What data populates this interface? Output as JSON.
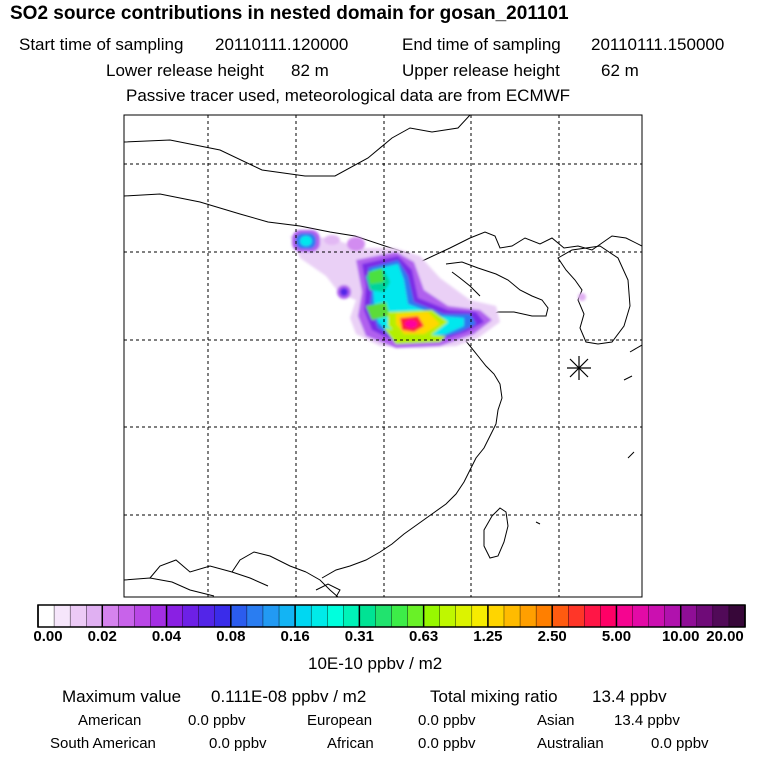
{
  "header": {
    "title": "SO2 source contributions in nested domain for gosan_201101",
    "start_label": "Start time of sampling",
    "start_value": "20110111.120000",
    "end_label": "End time of sampling",
    "end_value": "20110111.150000",
    "lower_label": "Lower release height",
    "lower_value": "82 m",
    "upper_label": "Upper release height",
    "upper_value": "62 m",
    "note": "Passive tracer used, meteorological data are from ECMWF"
  },
  "colorbar": {
    "unit": "10E-10 ppbv / m2",
    "tick_labels": [
      "0.00",
      "0.02",
      "0.04",
      "0.08",
      "0.16",
      "0.31",
      "0.63",
      "1.25",
      "2.50",
      "5.00",
      "10.00",
      "20.00"
    ],
    "colors": [
      "#ffffff",
      "#f6e6fb",
      "#eccaf6",
      "#e0b0f2",
      "#d583ee",
      "#c863ea",
      "#b947e6",
      "#a42ee3",
      "#8a20e3",
      "#6d20e6",
      "#5325e8",
      "#3a2cea",
      "#2b5cee",
      "#2a7df1",
      "#229af3",
      "#13b4f4",
      "#00d7f2",
      "#00ebe9",
      "#00ffdd",
      "#00f3b8",
      "#00e394",
      "#21e36e",
      "#3ded48",
      "#69f127",
      "#97f800",
      "#bff700",
      "#dcf300",
      "#f6ec00",
      "#ffd500",
      "#ffbb00",
      "#ff9f00",
      "#ff7f00",
      "#ff5b10",
      "#ff3628",
      "#ff1646",
      "#ff0066",
      "#f50590",
      "#e30aa6",
      "#cb10b0",
      "#b012ad",
      "#8f0e96",
      "#6f0b78",
      "#510a58",
      "#370739"
    ]
  },
  "stats": {
    "max_label": "Maximum value",
    "max_value": "0.111E-08 ppbv / m2",
    "total_label": "Total mixing ratio",
    "total_value": "13.4 ppbv",
    "regions": [
      {
        "name": "American",
        "value": "0.0 ppbv"
      },
      {
        "name": "European",
        "value": "0.0 ppbv"
      },
      {
        "name": "Asian",
        "value": "13.4 ppbv"
      },
      {
        "name": "South American",
        "value": "0.0 ppbv"
      },
      {
        "name": "African",
        "value": "0.0 ppbv"
      },
      {
        "name": "Australian",
        "value": "0.0 ppbv"
      }
    ]
  },
  "map": {
    "receptor_marker": "asterisk-icon",
    "plume_colors": {
      "faint": "#e8c8f4",
      "violet": "#b060ee",
      "purple": "#7a2ae6",
      "blue": "#2f6ef0",
      "cyan": "#00e8ee",
      "teal": "#00d49a",
      "green": "#4ce040",
      "lime": "#b2f000",
      "yellow": "#ffd800",
      "red": "#ff1c3c",
      "magenta": "#ff00a0"
    }
  }
}
